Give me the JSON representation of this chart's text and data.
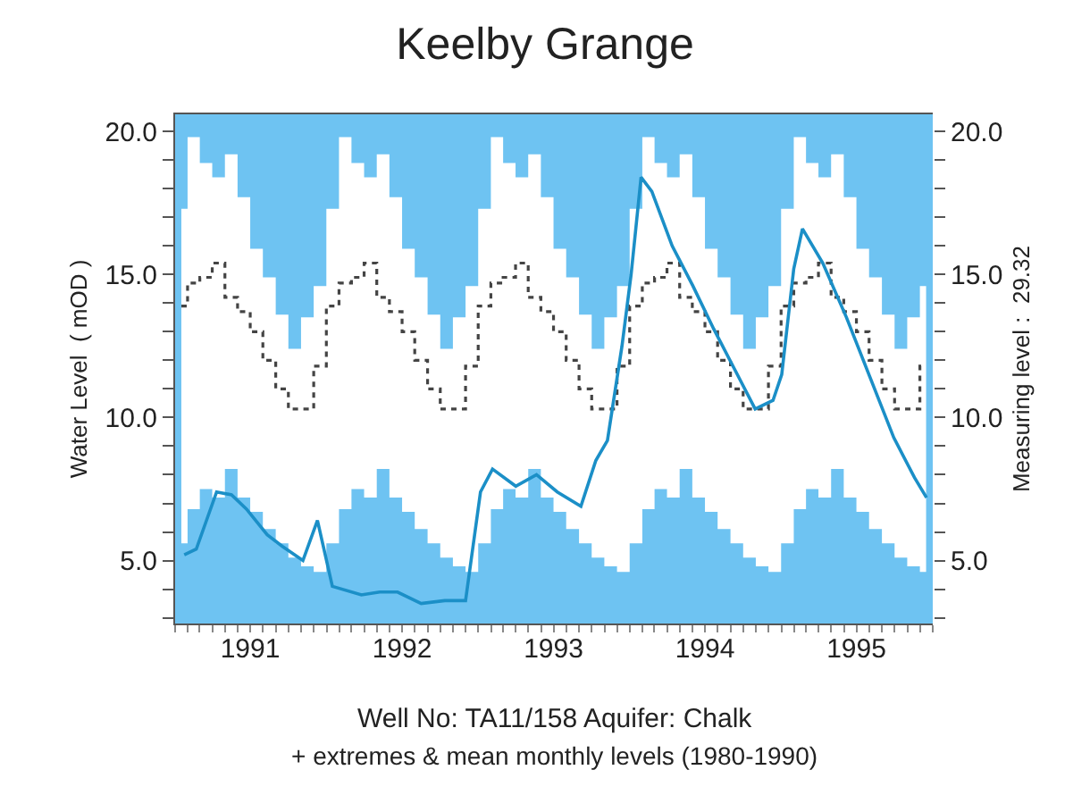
{
  "chart_data": {
    "type": "step",
    "title": "Keelby Grange",
    "ylabel": "Water Level  ( mOD )",
    "y2label": "Measuring level :  29.32",
    "annotations": [
      "Well No: TA11/158 Aquifer: Chalk",
      "+ extremes & mean monthly levels (1980-1990)"
    ],
    "x": [
      "1991-01-16",
      "1991-02-15",
      "1991-03-16",
      "1991-04-16",
      "1991-05-16",
      "1991-06-16",
      "1991-07-16",
      "1991-08-16",
      "1991-09-16",
      "1991-10-16",
      "1991-11-16",
      "1991-12-16",
      "1992-01-16",
      "1992-02-15",
      "1992-03-16",
      "1992-04-16",
      "1992-05-16",
      "1992-06-16",
      "1992-07-16",
      "1992-08-16",
      "1992-09-16",
      "1992-10-16",
      "1992-11-16",
      "1992-12-16",
      "1993-01-16",
      "1993-02-15",
      "1993-03-16",
      "1993-04-16",
      "1993-05-16",
      "1993-06-16",
      "1993-07-16",
      "1993-08-16",
      "1993-09-16",
      "1993-10-16",
      "1993-11-16",
      "1993-12-16",
      "1994-01-16",
      "1994-02-15",
      "1994-03-16",
      "1994-04-16",
      "1994-05-16",
      "1994-06-16",
      "1994-07-16",
      "1994-08-16",
      "1994-09-16",
      "1994-10-16",
      "1994-11-16",
      "1994-12-16",
      "1995-01-16",
      "1995-02-15",
      "1995-03-16",
      "1995-04-16",
      "1995-05-16",
      "1995-06-16",
      "1995-07-16",
      "1995-08-16",
      "1995-09-16",
      "1995-10-16",
      "1995-11-16",
      "1995-12-16"
    ],
    "series": [
      {
        "color": "#444444",
        "line_style": "dotted",
        "values": [
          13.9,
          14.7,
          14.9,
          15.4,
          14.2,
          13.7,
          13.0,
          12.0,
          11.0,
          10.3,
          10.3,
          11.8,
          13.9,
          14.7,
          14.9,
          15.4,
          14.2,
          13.7,
          13.0,
          12.0,
          11.0,
          10.3,
          10.3,
          11.8,
          13.9,
          14.7,
          14.9,
          15.4,
          14.2,
          13.7,
          13.0,
          12.0,
          11.0,
          10.3,
          10.3,
          11.8,
          13.9,
          14.7,
          14.9,
          15.4,
          14.2,
          13.7,
          13.0,
          12.0,
          11.0,
          10.3,
          10.3,
          11.8,
          13.9,
          14.7,
          14.9,
          15.4,
          14.2,
          13.7,
          13.0,
          12.0,
          11.0,
          10.3,
          10.3,
          11.8
        ],
        "upper": [
          17.3,
          19.8,
          18.9,
          18.4,
          19.2,
          17.7,
          15.9,
          14.9,
          13.6,
          12.4,
          13.5,
          14.6,
          17.3,
          19.8,
          18.9,
          18.4,
          19.2,
          17.7,
          15.9,
          14.9,
          13.6,
          12.4,
          13.5,
          14.6,
          17.3,
          19.8,
          18.9,
          18.4,
          19.2,
          17.7,
          15.9,
          14.9,
          13.6,
          12.4,
          13.5,
          14.6,
          17.3,
          19.8,
          18.9,
          18.4,
          19.2,
          17.7,
          15.9,
          14.9,
          13.6,
          12.4,
          13.5,
          14.6,
          17.3,
          19.8,
          18.9,
          18.4,
          19.2,
          17.7,
          15.9,
          14.9,
          13.6,
          12.4,
          13.5,
          14.6
        ],
        "lower": [
          5.6,
          6.8,
          7.5,
          7.2,
          8.2,
          7.2,
          6.7,
          6.1,
          5.6,
          5.1,
          4.8,
          4.6,
          5.6,
          6.8,
          7.5,
          7.2,
          8.2,
          7.2,
          6.7,
          6.1,
          5.6,
          5.1,
          4.8,
          4.6,
          5.6,
          6.8,
          7.5,
          7.2,
          8.2,
          7.2,
          6.7,
          6.1,
          5.6,
          5.1,
          4.8,
          4.6,
          5.6,
          6.8,
          7.5,
          7.2,
          8.2,
          7.2,
          6.7,
          6.1,
          5.6,
          5.1,
          4.8,
          4.6,
          5.6,
          6.8,
          7.5,
          7.2,
          8.2,
          7.2,
          6.7,
          6.1,
          5.6,
          5.1,
          4.8,
          4.6
        ]
      },
      {
        "type": "line",
        "color": "#1b8fc7",
        "line_style": "solid",
        "x": [
          "1991-01-23",
          "1991-02-21",
          "1991-04-11",
          "1991-05-17",
          "1991-06-22",
          "1991-08-11",
          "1991-09-16",
          "1991-11-05",
          "1991-12-10",
          "1992-01-15",
          "1992-03-25",
          "1992-05-08",
          "1992-06-20",
          "1992-08-16",
          "1992-10-12",
          "1992-12-01",
          "1993-01-06",
          "1993-02-04",
          "1993-04-01",
          "1993-05-21",
          "1993-07-10",
          "1993-09-05",
          "1993-10-11",
          "1993-11-08",
          "1993-12-13",
          "1994-01-04",
          "1994-01-28",
          "1994-02-23",
          "1994-04-13",
          "1994-06-02",
          "1994-07-22",
          "1994-09-10",
          "1994-10-30",
          "1994-12-12",
          "1995-01-02",
          "1995-01-31",
          "1995-02-21",
          "1995-04-11",
          "1995-06-07",
          "1995-08-03",
          "1995-09-29",
          "1995-11-18",
          "1995-12-17"
        ],
        "values": [
          5.2,
          5.4,
          7.4,
          7.3,
          6.8,
          5.9,
          5.5,
          5.0,
          6.4,
          4.1,
          3.8,
          3.9,
          3.9,
          3.5,
          3.6,
          3.6,
          7.4,
          8.2,
          7.6,
          8.0,
          7.4,
          6.9,
          8.5,
          9.2,
          12.5,
          15.0,
          18.4,
          17.9,
          16.0,
          14.6,
          13.1,
          11.7,
          10.3,
          10.6,
          11.5,
          15.2,
          16.6,
          15.4,
          13.5,
          11.4,
          9.3,
          7.9,
          7.2
        ]
      }
    ],
    "xlim": [
      "1991-01-01",
      "1996-01-01"
    ],
    "xticks": [
      {
        "value": "1991-07-01",
        "label": "1991"
      },
      {
        "value": "1992-07-01",
        "label": "1992"
      },
      {
        "value": "1993-07-01",
        "label": "1993"
      },
      {
        "value": "1994-07-01",
        "label": "1994"
      },
      {
        "value": "1995-07-01",
        "label": "1995"
      }
    ],
    "ylim": [
      2.8,
      20.6
    ],
    "yticks": [
      {
        "value": 3,
        "label": null
      },
      {
        "value": 4,
        "label": null
      },
      {
        "value": 5,
        "label": "5.0"
      },
      {
        "value": 6,
        "label": null
      },
      {
        "value": 7,
        "label": null
      },
      {
        "value": 8,
        "label": null
      },
      {
        "value": 9,
        "label": null
      },
      {
        "value": 10,
        "label": "10.0"
      },
      {
        "value": 11,
        "label": null
      },
      {
        "value": 12,
        "label": null
      },
      {
        "value": 13,
        "label": null
      },
      {
        "value": 14,
        "label": null
      },
      {
        "value": 15,
        "label": "15.0"
      },
      {
        "value": 16,
        "label": null
      },
      {
        "value": 17,
        "label": null
      },
      {
        "value": 18,
        "label": null
      },
      {
        "value": 19,
        "label": null
      },
      {
        "value": 20,
        "label": "20.0"
      }
    ],
    "y2lim": [
      2.8,
      20.6
    ],
    "y2ticks": [
      {
        "value": 3,
        "label": null
      },
      {
        "value": 4,
        "label": null
      },
      {
        "value": 5,
        "label": "5.0"
      },
      {
        "value": 6,
        "label": null
      },
      {
        "value": 7,
        "label": null
      },
      {
        "value": 8,
        "label": null
      },
      {
        "value": 9,
        "label": null
      },
      {
        "value": 10,
        "label": "10.0"
      },
      {
        "value": 11,
        "label": null
      },
      {
        "value": 12,
        "label": null
      },
      {
        "value": 13,
        "label": null
      },
      {
        "value": 14,
        "label": null
      },
      {
        "value": 15,
        "label": "15.0"
      },
      {
        "value": 16,
        "label": null
      },
      {
        "value": 17,
        "label": null
      },
      {
        "value": 18,
        "label": null
      },
      {
        "value": 19,
        "label": null
      },
      {
        "value": 20,
        "label": "20.0"
      }
    ],
    "bands": [
      {
        "axis": "y",
        "from": 2.8,
        "to": 20.6,
        "color": "#6ec3f2"
      }
    ]
  }
}
